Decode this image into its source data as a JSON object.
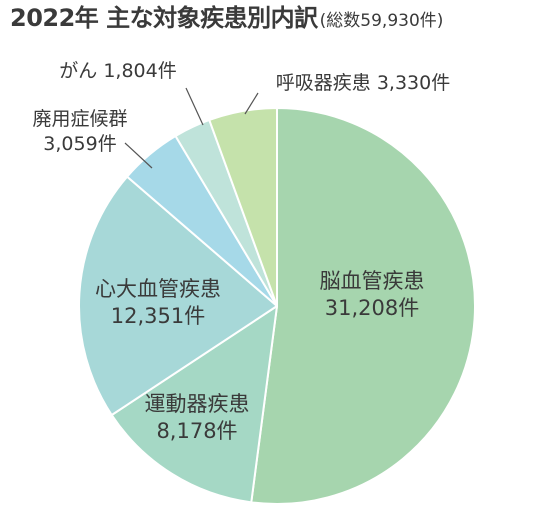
{
  "title": "2022年 主な対象疾患別内訳",
  "subtitle": "(総数59,930件)",
  "chart_data": {
    "type": "pie",
    "total": 59930,
    "unit": "件",
    "slices": [
      {
        "label": "脳血管疾患",
        "value": 31208,
        "display_value": "31,208件",
        "color": "#a6d5ae"
      },
      {
        "label": "運動器疾患",
        "value": 8178,
        "display_value": "8,178件",
        "color": "#a5d8c5"
      },
      {
        "label": "心大血管疾患",
        "value": 12351,
        "display_value": "12,351件",
        "color": "#a7d8d8"
      },
      {
        "label": "廃用症候群",
        "value": 3059,
        "display_value": "3,059件",
        "color": "#a6d9e8"
      },
      {
        "label": "がん",
        "value": 1804,
        "display_value": "1,804件",
        "color": "#bfe3da"
      },
      {
        "label": "呼吸器疾患",
        "value": 3330,
        "display_value": "3,330件",
        "color": "#c5e2ab"
      }
    ]
  }
}
